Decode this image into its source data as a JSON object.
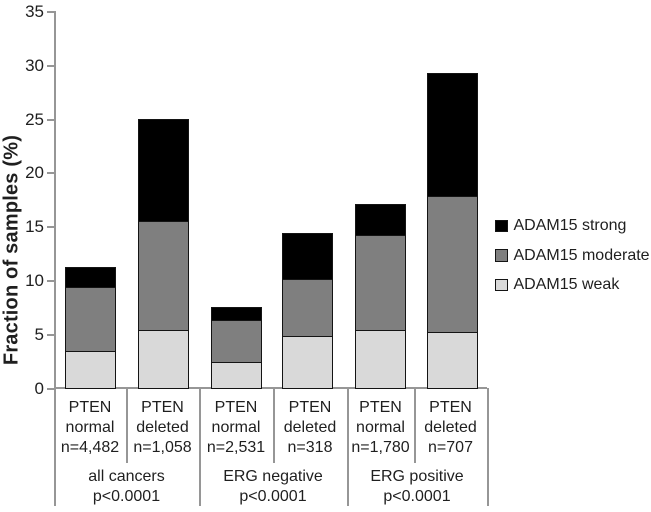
{
  "chart_data": {
    "type": "bar",
    "stacked": true,
    "title": "",
    "ylabel": "Fraction of samples (%)",
    "xlabel": "",
    "ylim": [
      0,
      35
    ],
    "yticks": [
      0,
      5,
      10,
      15,
      20,
      25,
      30,
      35
    ],
    "grid": false,
    "legend_position": "right",
    "legend_order": [
      "ADAM15 strong",
      "ADAM15 moderate",
      "ADAM15 weak"
    ],
    "axis_color": "#969696",
    "bar_border_color": "#141414",
    "text_color": "#1f1f1f",
    "groups": [
      {
        "label": "all cancers",
        "p_label": "p<0.0001"
      },
      {
        "label": "ERG negative",
        "p_label": "p<0.0001"
      },
      {
        "label": "ERG positive",
        "p_label": "p<0.0001"
      }
    ],
    "categories": [
      {
        "lines": [
          "PTEN",
          "normal",
          "n=4,482"
        ],
        "group": 0
      },
      {
        "lines": [
          "PTEN",
          "deleted",
          "n=1,058"
        ],
        "group": 0
      },
      {
        "lines": [
          "PTEN",
          "normal",
          "n=2,531"
        ],
        "group": 1
      },
      {
        "lines": [
          "PTEN",
          "deleted",
          "n=318"
        ],
        "group": 1
      },
      {
        "lines": [
          "PTEN",
          "normal",
          "n=1,780"
        ],
        "group": 2
      },
      {
        "lines": [
          "PTEN",
          "deleted",
          "n=707"
        ],
        "group": 2
      }
    ],
    "series": [
      {
        "name": "ADAM15 weak",
        "color": "#d9d9d9",
        "values": [
          3.4,
          5.3,
          2.3,
          4.7,
          5.3,
          5.1
        ]
      },
      {
        "name": "ADAM15 moderate",
        "color": "#7f7f7f",
        "values": [
          5.9,
          10.1,
          3.9,
          5.3,
          8.8,
          12.7
        ]
      },
      {
        "name": "ADAM15 strong",
        "color": "#000000",
        "values": [
          1.9,
          9.5,
          1.2,
          4.3,
          2.9,
          11.4
        ]
      }
    ],
    "totals": [
      11.2,
      24.9,
      7.4,
      14.3,
      17.0,
      29.2
    ]
  }
}
